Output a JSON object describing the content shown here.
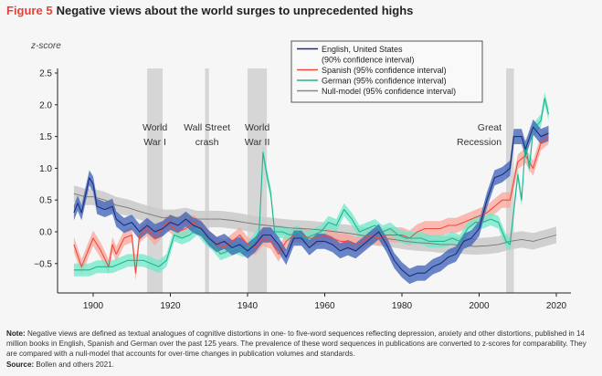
{
  "figure": {
    "label": "Figure 5",
    "title": "Negative views about the world surges to unprecedented highs"
  },
  "note": {
    "note_label": "Note:",
    "note_text": "Negative views are defined as textual analogues of cognitive distortions in one- to five-word sequences reflecting depression, anxiety and other distortions, published in 14 million books in English, Spanish and German over the past 125 years. The prevalence of these word sequences in publications are converted to z-scores for comparability. They are compared with a null-model that accounts for over-time changes in publication volumes and standards.",
    "source_label": "Source:",
    "source_text": "Bollen and others 2021."
  },
  "chart_data": {
    "type": "line",
    "title": "Negative views about the world surges to unprecedented highs",
    "xlabel": "",
    "ylabel": "z-score",
    "xlim": [
      1893,
      2023
    ],
    "ylim": [
      -0.8,
      2.5
    ],
    "xticks": [
      1900,
      1920,
      1940,
      1960,
      1980,
      2000,
      2020
    ],
    "yticks": [
      {
        "v": 2.5,
        "label": "2.5"
      },
      {
        "v": 2.0,
        "label": "2.0"
      },
      {
        "v": 1.5,
        "label": "1.5"
      },
      {
        "v": 1.0,
        "label": "1.0"
      },
      {
        "v": 0.5,
        "label": "0.5"
      },
      {
        "v": 0.0,
        "label": "0.0"
      },
      {
        "v": -0.5,
        "label": "−0.5"
      }
    ],
    "grid": false,
    "legend_position": "top-right",
    "events": [
      {
        "name": "World War I",
        "label_lines": [
          "World",
          "War I"
        ],
        "start": 1914,
        "end": 1918
      },
      {
        "name": "Wall Street crash",
        "label_lines": [
          "Wall Street",
          "crash"
        ],
        "start": 1929,
        "end": 1930
      },
      {
        "name": "World War II",
        "label_lines": [
          "World",
          "War II"
        ],
        "start": 1940,
        "end": 1945
      },
      {
        "name": "Great Recession",
        "label_lines": [
          "Great",
          "Recession"
        ],
        "start": 2007,
        "end": 2009
      }
    ],
    "series": [
      {
        "name": "Null-model (95% confidence interval)",
        "color": "#777777",
        "band_color": "#c9c9c9",
        "ci": 0.13,
        "x": [
          1895,
          1898,
          1900,
          1903,
          1906,
          1909,
          1912,
          1915,
          1918,
          1921,
          1924,
          1927,
          1930,
          1933,
          1936,
          1939,
          1942,
          1945,
          1948,
          1951,
          1954,
          1957,
          1960,
          1963,
          1966,
          1969,
          1972,
          1975,
          1978,
          1981,
          1984,
          1987,
          1990,
          1993,
          1996,
          1999,
          2002,
          2005,
          2008,
          2011,
          2014,
          2017,
          2020
        ],
        "y": [
          0.6,
          0.55,
          0.55,
          0.5,
          0.42,
          0.38,
          0.32,
          0.27,
          0.22,
          0.22,
          0.25,
          0.2,
          0.2,
          0.2,
          0.18,
          0.15,
          0.12,
          0.1,
          0.08,
          0.06,
          0.05,
          0.04,
          0.02,
          0.0,
          -0.02,
          -0.05,
          -0.08,
          -0.1,
          -0.12,
          -0.15,
          -0.17,
          -0.18,
          -0.2,
          -0.2,
          -0.22,
          -0.23,
          -0.22,
          -0.2,
          -0.15,
          -0.12,
          -0.15,
          -0.1,
          -0.05
        ]
      },
      {
        "name": "Spanish (95% confidence interval)",
        "color": "#f0493d",
        "band_color": "#f9a59b",
        "ci": 0.12,
        "x": [
          1895,
          1897,
          1898,
          1900,
          1902,
          1904,
          1905,
          1906,
          1908,
          1910,
          1911,
          1912,
          1914,
          1916,
          1918,
          1919,
          1920,
          1922,
          1924,
          1926,
          1928,
          1930,
          1932,
          1934,
          1936,
          1938,
          1940,
          1942,
          1944,
          1946,
          1948,
          1950,
          1952,
          1954,
          1956,
          1958,
          1960,
          1962,
          1964,
          1966,
          1968,
          1970,
          1972,
          1974,
          1976,
          1978,
          1980,
          1982,
          1984,
          1986,
          1988,
          1990,
          1992,
          1994,
          1996,
          1998,
          2000,
          2002,
          2004,
          2006,
          2008,
          2010,
          2012,
          2014,
          2016,
          2018
        ],
        "y": [
          -0.2,
          -0.55,
          -0.4,
          -0.1,
          -0.3,
          -0.55,
          -0.2,
          -0.35,
          -0.1,
          -0.05,
          -0.65,
          -0.05,
          0.05,
          -0.1,
          0.05,
          0.15,
          0.1,
          0.0,
          0.05,
          0.15,
          0.05,
          -0.1,
          -0.2,
          -0.25,
          -0.15,
          -0.05,
          -0.2,
          -0.25,
          -0.1,
          -0.15,
          -0.35,
          -0.15,
          -0.05,
          -0.05,
          -0.1,
          -0.1,
          -0.05,
          -0.1,
          -0.15,
          -0.15,
          -0.2,
          -0.15,
          -0.05,
          -0.1,
          -0.05,
          -0.05,
          -0.05,
          -0.1,
          0.0,
          0.05,
          0.05,
          0.05,
          0.1,
          0.1,
          0.15,
          0.2,
          0.25,
          0.3,
          0.4,
          0.5,
          0.5,
          1.1,
          1.2,
          1.0,
          1.4,
          1.5
        ]
      },
      {
        "name": "German (95% confidence interval)",
        "color": "#1fb58f",
        "band_color": "#6fe8c8",
        "ci": 0.1,
        "x": [
          1895,
          1897,
          1899,
          1901,
          1903,
          1905,
          1907,
          1909,
          1911,
          1913,
          1915,
          1917,
          1919,
          1921,
          1923,
          1925,
          1927,
          1929,
          1931,
          1933,
          1935,
          1937,
          1939,
          1941,
          1943,
          1944,
          1945,
          1946,
          1947,
          1949,
          1951,
          1953,
          1955,
          1957,
          1959,
          1961,
          1963,
          1965,
          1967,
          1969,
          1971,
          1973,
          1975,
          1977,
          1979,
          1981,
          1983,
          1985,
          1987,
          1989,
          1991,
          1993,
          1995,
          1997,
          1999,
          2001,
          2003,
          2005,
          2007,
          2008,
          2010,
          2011,
          2012,
          2013,
          2014,
          2016,
          2017,
          2018
        ],
        "y": [
          -0.6,
          -0.6,
          -0.6,
          -0.55,
          -0.55,
          -0.55,
          -0.5,
          -0.45,
          -0.45,
          -0.45,
          -0.5,
          -0.55,
          -0.45,
          -0.05,
          -0.1,
          -0.05,
          0.05,
          -0.1,
          -0.2,
          -0.35,
          -0.3,
          -0.25,
          -0.3,
          -0.2,
          0.0,
          1.25,
          0.9,
          0.6,
          0.0,
          0.0,
          -0.05,
          0.0,
          -0.1,
          -0.05,
          0.0,
          0.15,
          0.1,
          0.35,
          0.2,
          0.0,
          0.05,
          0.1,
          0.0,
          0.05,
          -0.05,
          -0.1,
          -0.1,
          -0.1,
          -0.15,
          -0.15,
          -0.15,
          -0.1,
          -0.15,
          0.05,
          0.15,
          0.15,
          0.2,
          0.15,
          -0.15,
          -0.2,
          0.9,
          0.5,
          1.4,
          1.0,
          1.6,
          1.75,
          2.1,
          1.85
        ]
      },
      {
        "name": "English, United States",
        "legend_sub": "(90% confidence interval)",
        "color": "#1a2e7a",
        "band_color": "#3a5fb8",
        "ci": 0.12,
        "x": [
          1895,
          1896,
          1897,
          1899,
          1900,
          1901,
          1903,
          1905,
          1906,
          1908,
          1910,
          1912,
          1914,
          1916,
          1918,
          1920,
          1922,
          1924,
          1926,
          1928,
          1930,
          1932,
          1934,
          1936,
          1938,
          1940,
          1942,
          1944,
          1946,
          1948,
          1950,
          1952,
          1954,
          1956,
          1958,
          1960,
          1962,
          1964,
          1966,
          1968,
          1970,
          1972,
          1974,
          1976,
          1978,
          1980,
          1982,
          1984,
          1986,
          1988,
          1990,
          1992,
          1994,
          1996,
          1998,
          2000,
          2002,
          2004,
          2006,
          2008,
          2009,
          2011,
          2012,
          2014,
          2016,
          2018
        ],
        "y": [
          0.3,
          0.45,
          0.3,
          0.85,
          0.75,
          0.4,
          0.35,
          0.4,
          0.2,
          0.1,
          0.15,
          0.0,
          0.1,
          0.0,
          0.05,
          0.15,
          0.1,
          0.2,
          0.1,
          0.05,
          -0.1,
          -0.2,
          -0.15,
          -0.25,
          -0.2,
          -0.3,
          -0.2,
          -0.05,
          -0.05,
          -0.2,
          -0.4,
          -0.1,
          -0.1,
          -0.25,
          -0.15,
          -0.15,
          -0.2,
          -0.3,
          -0.25,
          -0.3,
          -0.2,
          -0.1,
          0.0,
          -0.2,
          -0.45,
          -0.6,
          -0.7,
          -0.65,
          -0.65,
          -0.55,
          -0.5,
          -0.4,
          -0.35,
          -0.15,
          -0.1,
          0.05,
          0.5,
          0.85,
          0.9,
          1.0,
          1.5,
          1.5,
          1.3,
          1.65,
          1.5,
          1.55
        ]
      }
    ],
    "legend": [
      {
        "label": "English, United States",
        "sub": "(90% confidence interval)",
        "color": "#1a2e7a"
      },
      {
        "label": "Spanish (95% confidence interval)",
        "color": "#f0493d"
      },
      {
        "label": "German (95% confidence interval)",
        "color": "#1fb58f"
      },
      {
        "label": "Null-model (95% confidence interval)",
        "color": "#888888"
      }
    ]
  }
}
